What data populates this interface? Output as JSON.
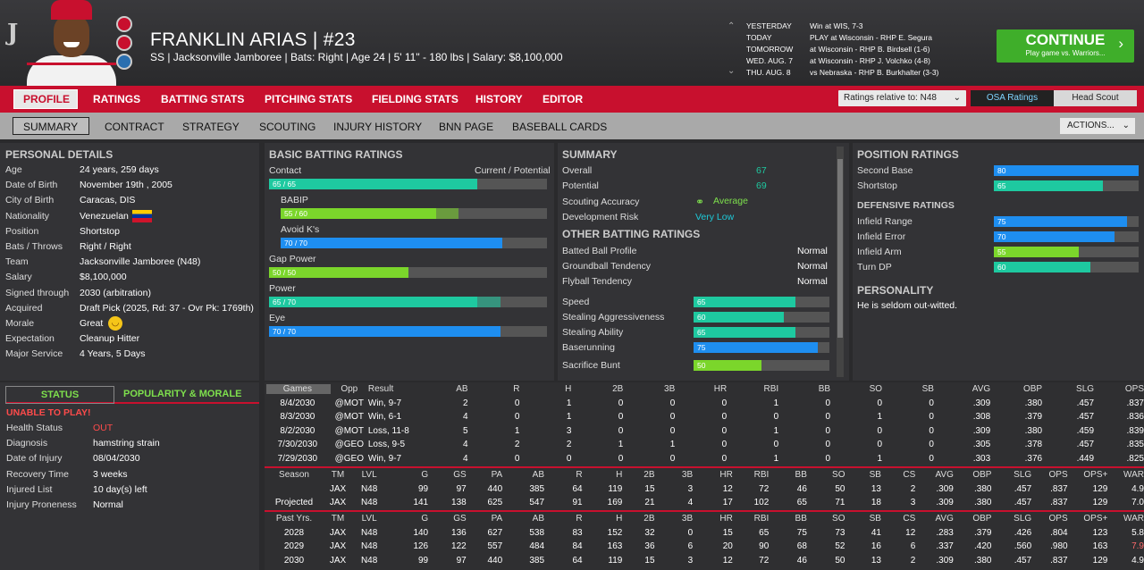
{
  "header": {
    "logo": "J",
    "name": "FRANKLIN ARIAS  |  #23",
    "subtitle": "SS | Jacksonville Jamboree  |  Bats: Right  |  Age 24  |  5' 11\" - 180 lbs  |  Salary: $8,100,000"
  },
  "schedule": [
    {
      "day": "YESTERDAY",
      "game": "Win at WIS, 7-3"
    },
    {
      "day": "TODAY",
      "game": "PLAY at Wisconsin - RHP E. Segura"
    },
    {
      "day": "TOMORROW",
      "game": "at Wisconsin - RHP B. Birdsell (1-6)"
    },
    {
      "day": "WED. AUG. 7",
      "game": "at Wisconsin - RHP J. Volchko (4-8)"
    },
    {
      "day": "THU. AUG. 8",
      "game": "vs Nebraska - RHP B. Burkhalter (3-3)"
    }
  ],
  "continue": {
    "label": "CONTINUE",
    "sub": "Play game vs. Warriors...",
    "arrow": "›"
  },
  "nav1": [
    "PROFILE",
    "RATINGS",
    "BATTING STATS",
    "PITCHING STATS",
    "FIELDING STATS",
    "HISTORY",
    "EDITOR"
  ],
  "ratings_select": "Ratings relative to: N48",
  "osa": "OSA Ratings",
  "head_scout": "Head Scout",
  "nav2": [
    "SUMMARY",
    "CONTRACT",
    "STRATEGY",
    "SCOUTING",
    "INJURY HISTORY",
    "BNN PAGE",
    "BASEBALL CARDS"
  ],
  "actions": "ACTIONS...",
  "personal": {
    "title": "PERSONAL DETAILS",
    "rows": [
      [
        "Age",
        "24 years, 259 days"
      ],
      [
        "Date of Birth",
        "November 19th , 2005"
      ],
      [
        "City of Birth",
        "Caracas, DIS"
      ],
      [
        "Nationality",
        "Venezuelan"
      ],
      [
        "Position",
        "Shortstop"
      ],
      [
        "Bats / Throws",
        "Right / Right"
      ],
      [
        "Team",
        "Jacksonville Jamboree (N48)"
      ],
      [
        "Salary",
        "$8,100,000"
      ],
      [
        "Signed through",
        "2030 (arbitration)"
      ],
      [
        "Acquired",
        "Draft Pick (2025, Rd: 37 - Ovr Pk: 1769th)"
      ],
      [
        "Morale",
        "Great"
      ],
      [
        "Expectation",
        "Cleanup Hitter"
      ],
      [
        "Major Service",
        "4 Years, 5 Days"
      ]
    ]
  },
  "batting": {
    "title": "BASIC BATTING RATINGS",
    "curpot": "Current / Potential",
    "rows": [
      {
        "label": "Contact",
        "text": "65 / 65",
        "cur": 65,
        "pot": 65,
        "color": "#1ec9a0"
      },
      {
        "label": "BABIP",
        "text": "55 / 60",
        "cur": 55,
        "pot": 60,
        "color": "#7bd62b"
      },
      {
        "label": "Avoid K's",
        "text": "70 / 70",
        "cur": 70,
        "pot": 70,
        "color": "#1e8ef0"
      },
      {
        "label": "Gap Power",
        "text": "50 / 50",
        "cur": 50,
        "pot": 50,
        "color": "#7bd62b"
      },
      {
        "label": "Power",
        "text": "65 / 70",
        "cur": 65,
        "pot": 70,
        "color": "#1ec9a0"
      },
      {
        "label": "Eye",
        "text": "70 / 70",
        "cur": 70,
        "pot": 70,
        "color": "#1e8ef0"
      }
    ]
  },
  "summary": {
    "title": "SUMMARY",
    "overall_l": "Overall",
    "overall": "67",
    "potential_l": "Potential",
    "potential": "69",
    "scout_l": "Scouting Accuracy",
    "scout": "Average",
    "risk_l": "Development Risk",
    "risk": "Very Low",
    "other_title": "OTHER BATTING RATINGS",
    "other": [
      [
        "Batted Ball Profile",
        "Normal"
      ],
      [
        "Groundball Tendency",
        "Normal"
      ],
      [
        "Flyball Tendency",
        "Normal"
      ]
    ],
    "bars": [
      {
        "label": "Speed",
        "v": 65,
        "color": "#1ec9a0"
      },
      {
        "label": "Stealing Aggressiveness",
        "v": 60,
        "color": "#1ec9a0"
      },
      {
        "label": "Stealing Ability",
        "v": 65,
        "color": "#1ec9a0"
      },
      {
        "label": "Baserunning",
        "v": 75,
        "color": "#1e8ef0"
      },
      {
        "label": "Sacrifice Bunt",
        "v": 50,
        "color": "#7bd62b"
      }
    ]
  },
  "position": {
    "title": "POSITION RATINGS",
    "rows": [
      {
        "label": "Second Base",
        "v": 80,
        "color": "#1e8ef0"
      },
      {
        "label": "Shortstop",
        "v": 65,
        "color": "#1ec9a0"
      }
    ],
    "def_title": "DEFENSIVE RATINGS",
    "def": [
      {
        "label": "Infield Range",
        "v": 75,
        "color": "#1e8ef0"
      },
      {
        "label": "Infield Error",
        "v": 70,
        "color": "#1e8ef0"
      },
      {
        "label": "Infield Arm",
        "v": 55,
        "color": "#7bd62b"
      },
      {
        "label": "Turn DP",
        "v": 60,
        "color": "#1ec9a0"
      }
    ],
    "pers_title": "PERSONALITY",
    "pers": "He is seldom out-witted."
  },
  "status": {
    "tab1": "STATUS",
    "tab2": "POPULARITY & MORALE",
    "unable": "UNABLE TO PLAY!",
    "rows": [
      [
        "Health Status",
        "OUT"
      ],
      [
        "Diagnosis",
        "hamstring strain"
      ],
      [
        "Date of Injury",
        "08/04/2030"
      ],
      [
        "Recovery Time",
        "3 weeks"
      ],
      [
        "Injured List",
        "10 day(s) left"
      ],
      [
        "Injury Proneness",
        "Normal"
      ]
    ]
  },
  "games": {
    "headers": [
      "Games",
      "Opp",
      "Result",
      "AB",
      "R",
      "H",
      "2B",
      "3B",
      "HR",
      "RBI",
      "BB",
      "SO",
      "SB",
      "AVG",
      "OBP",
      "SLG",
      "OPS"
    ],
    "rows": [
      [
        "8/4/2030",
        "@MOT",
        "Win, 9-7",
        "2",
        "0",
        "1",
        "0",
        "0",
        "0",
        "1",
        "0",
        "0",
        "0",
        ".309",
        ".380",
        ".457",
        ".837"
      ],
      [
        "8/3/2030",
        "@MOT",
        "Win, 6-1",
        "4",
        "0",
        "1",
        "0",
        "0",
        "0",
        "0",
        "0",
        "1",
        "0",
        ".308",
        ".379",
        ".457",
        ".836"
      ],
      [
        "8/2/2030",
        "@MOT",
        "Loss, 11-8",
        "5",
        "1",
        "3",
        "0",
        "0",
        "0",
        "1",
        "0",
        "0",
        "0",
        ".309",
        ".380",
        ".459",
        ".839"
      ],
      [
        "7/30/2030",
        "@GEO",
        "Loss, 9-5",
        "4",
        "2",
        "2",
        "1",
        "1",
        "0",
        "0",
        "0",
        "0",
        "0",
        ".305",
        ".378",
        ".457",
        ".835"
      ],
      [
        "7/29/2030",
        "@GEO",
        "Win, 9-7",
        "4",
        "0",
        "0",
        "0",
        "0",
        "0",
        "1",
        "0",
        "1",
        "0",
        ".303",
        ".376",
        ".449",
        ".825"
      ]
    ]
  },
  "season": {
    "headers": [
      "Season",
      "TM",
      "LVL",
      "G",
      "GS",
      "PA",
      "AB",
      "R",
      "H",
      "2B",
      "3B",
      "HR",
      "RBI",
      "BB",
      "SO",
      "SB",
      "CS",
      "AVG",
      "OBP",
      "SLG",
      "OPS",
      "OPS+",
      "WAR"
    ],
    "rows": [
      [
        "",
        "JAX",
        "N48",
        "99",
        "97",
        "440",
        "385",
        "64",
        "119",
        "15",
        "3",
        "12",
        "72",
        "46",
        "50",
        "13",
        "2",
        ".309",
        ".380",
        ".457",
        ".837",
        "129",
        "4.9"
      ],
      [
        "Projected",
        "JAX",
        "N48",
        "141",
        "138",
        "625",
        "547",
        "91",
        "169",
        "21",
        "4",
        "17",
        "102",
        "65",
        "71",
        "18",
        "3",
        ".309",
        ".380",
        ".457",
        ".837",
        "129",
        "7.0"
      ]
    ]
  },
  "past": {
    "headers": [
      "Past Yrs.",
      "TM",
      "LVL",
      "G",
      "GS",
      "PA",
      "AB",
      "R",
      "H",
      "2B",
      "3B",
      "HR",
      "RBI",
      "BB",
      "SO",
      "SB",
      "CS",
      "AVG",
      "OBP",
      "SLG",
      "OPS",
      "OPS+",
      "WAR"
    ],
    "rows": [
      [
        "2028",
        "JAX",
        "N48",
        "140",
        "136",
        "627",
        "538",
        "83",
        "152",
        "32",
        "0",
        "15",
        "65",
        "75",
        "73",
        "41",
        "12",
        ".283",
        ".379",
        ".426",
        ".804",
        "123",
        "5.8"
      ],
      [
        "2029",
        "JAX",
        "N48",
        "126",
        "122",
        "557",
        "484",
        "84",
        "163",
        "36",
        "6",
        "20",
        "90",
        "68",
        "52",
        "16",
        "6",
        ".337",
        ".420",
        ".560",
        ".980",
        "163",
        "7.9"
      ],
      [
        "2030",
        "JAX",
        "N48",
        "99",
        "97",
        "440",
        "385",
        "64",
        "119",
        "15",
        "3",
        "12",
        "72",
        "46",
        "50",
        "13",
        "2",
        ".309",
        ".380",
        ".457",
        ".837",
        "129",
        "4.9"
      ]
    ]
  }
}
